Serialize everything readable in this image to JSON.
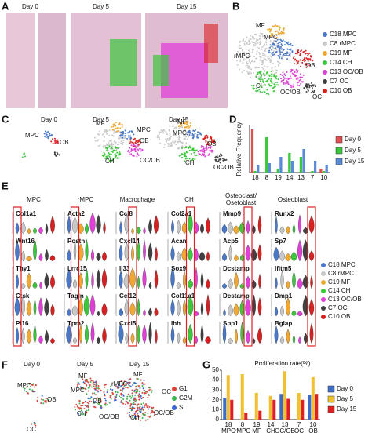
{
  "panel_a": {
    "label": "A",
    "days": [
      "Day 0",
      "Day 5",
      "Day 15"
    ]
  },
  "panel_b": {
    "label": "B",
    "annotations": [
      "MF",
      "MPC",
      "rMPC",
      "OB",
      "CH",
      "OC/OB",
      "OC"
    ],
    "legend": [
      {
        "name": "C18 MPC",
        "color": "#4a78c8"
      },
      {
        "name": "C8 rMPC",
        "color": "#c8c8c8"
      },
      {
        "name": "C19 MF",
        "color": "#f0a830"
      },
      {
        "name": "C14 CH",
        "color": "#3cc83c"
      },
      {
        "name": "C13 OC/OB",
        "color": "#e040d8"
      },
      {
        "name": "C7 OC",
        "color": "#404040"
      },
      {
        "name": "C10 OB",
        "color": "#d82020"
      }
    ]
  },
  "panel_c": {
    "label": "C",
    "days": [
      "Day 0",
      "Day 5",
      "Day 15"
    ],
    "annotations": [
      "MPC",
      "OB",
      "MF",
      "MPC",
      "OB",
      "OC/OB",
      "CH",
      "MF",
      "MPC",
      "OB",
      "CH",
      "OC/OB"
    ]
  },
  "panel_e": {
    "label": "E",
    "columns": [
      {
        "title": "MPC",
        "genes": [
          "Col1a1",
          "Wnt16",
          "Thy1",
          "Ctsk",
          "Pi16"
        ]
      },
      {
        "title": "rMPC",
        "genes": [
          "Acta2",
          "Postn",
          "Lrrc15",
          "Tagln",
          "Tpm2"
        ]
      },
      {
        "title": "Macrophage",
        "genes": [
          "Ccl8",
          "Cxcl14",
          "Il33",
          "Ccl12",
          "Cxcl5"
        ]
      },
      {
        "title": "CH",
        "genes": [
          "Col2a1",
          "Acan",
          "Sox9",
          "Col11a1",
          "Ihh"
        ]
      },
      {
        "title": "Osteoclast/",
        "title2": "Osetoblast",
        "genes": [
          "Mmp9",
          "Acp5",
          "Dcstamp",
          "Dcstamp",
          "Spp1"
        ]
      },
      {
        "title": "Osteoblast",
        "genes": [
          "Runx2",
          "Sp7",
          "Ifitm5",
          "Dmp1",
          "Bglap"
        ]
      }
    ]
  },
  "panel_f": {
    "label": "F",
    "days": [
      "Day 0",
      "Day 5",
      "Day 15"
    ],
    "annotations": [
      "MPC",
      "OB",
      "OC",
      "MF",
      "MPC",
      "OB",
      "CH",
      "OC/OB",
      "rMPC",
      "MF",
      "CH",
      "OC",
      "OC/OB"
    ],
    "legend": [
      {
        "name": "G1",
        "color": "#e0403c"
      },
      {
        "name": "G2M",
        "color": "#3cb44a"
      },
      {
        "name": "S",
        "color": "#3c64d8"
      }
    ]
  },
  "chart_data": [
    {
      "label": "D",
      "type": "bar",
      "ylabel": "Relative Frequency",
      "categories": [
        "18",
        "8",
        "19",
        "14",
        "13",
        "7",
        "10"
      ],
      "series": [
        {
          "name": "Day 0",
          "color": "#e05050",
          "values": [
            0.55,
            0,
            0,
            0,
            0,
            0,
            0.05
          ]
        },
        {
          "name": "Day 5",
          "color": "#3cc83c",
          "values": [
            0.02,
            0.45,
            0.05,
            0.25,
            0.2,
            0.02,
            0.02
          ]
        },
        {
          "name": "Day 15",
          "color": "#5a8ad8",
          "values": [
            0.1,
            0.12,
            0.2,
            0.15,
            0.3,
            0.15,
            0.1
          ]
        }
      ],
      "ylim": [
        0,
        0.6
      ]
    },
    {
      "label": "G",
      "type": "bar",
      "title": "Proliferation rate(%)",
      "categories": [
        "18",
        "8",
        "19",
        "14",
        "13",
        "7",
        "10"
      ],
      "category_names": [
        "MPC",
        "rMPC",
        "MF",
        "CH",
        "OC/OB",
        "OC",
        "OB"
      ],
      "series": [
        {
          "name": "Day 0",
          "color": "#3c6cc8",
          "values": [
            22,
            0,
            0,
            0,
            26,
            0,
            25
          ]
        },
        {
          "name": "Day 5",
          "color": "#f0c030",
          "values": [
            45,
            46,
            27,
            24,
            49,
            27,
            43
          ]
        },
        {
          "name": "Day 15",
          "color": "#e02020",
          "values": [
            20,
            7,
            9,
            20,
            21,
            20,
            26
          ]
        }
      ],
      "ylim": [
        0,
        50
      ],
      "yticks": [
        0,
        10,
        20,
        30,
        40,
        50
      ]
    }
  ]
}
